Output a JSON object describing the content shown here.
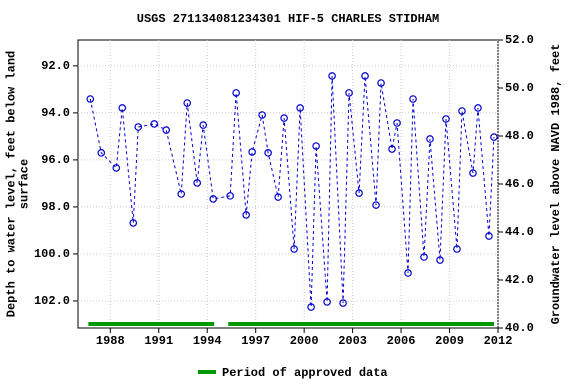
{
  "chart_data": {
    "type": "line",
    "title": "USGS 271134081234301 HIF-5  CHARLES STIDHAM",
    "y_label": "Depth to water level, feet below land\nsurface",
    "y2_label": "Groundwater level above NAVD 1988, feet",
    "xlim": [
      1986,
      2012
    ],
    "xticks": [
      1988,
      1991,
      1994,
      1997,
      2000,
      2003,
      2006,
      2009,
      2012
    ],
    "ylim": [
      90.9,
      103.15
    ],
    "yticks": [
      {
        "value": 92,
        "label": "92.0"
      },
      {
        "value": 94,
        "label": "94.0"
      },
      {
        "value": 96,
        "label": "96.0"
      },
      {
        "value": 98,
        "label": "98.0"
      },
      {
        "value": 100,
        "label": "100.0"
      },
      {
        "value": 102,
        "label": "102.0"
      }
    ],
    "y_inverted": true,
    "y2lim": [
      52,
      40
    ],
    "y2ticks": [
      {
        "value": 52,
        "label": "52.0"
      },
      {
        "value": 50,
        "label": "50.0"
      },
      {
        "value": 48,
        "label": "48.0"
      },
      {
        "value": 46,
        "label": "46.0"
      },
      {
        "value": 44,
        "label": "44.0"
      },
      {
        "value": 42,
        "label": "42.0"
      },
      {
        "value": 40,
        "label": "40.0"
      }
    ],
    "grid": true,
    "series": [
      {
        "color": "#0000cc",
        "x": [
          1986.76,
          1987.44,
          1988.37,
          1988.74,
          1989.42,
          1989.73,
          1990.72,
          1991.46,
          1992.39,
          1992.76,
          1993.38,
          1993.75,
          1994.37,
          1995.42,
          1995.79,
          1996.41,
          1996.78,
          1997.4,
          1997.77,
          1998.39,
          1998.76,
          1999.38,
          1999.75,
          2000.43,
          2000.74,
          2001.42,
          2001.73,
          2002.41,
          2002.78,
          2003.4,
          2003.77,
          2004.45,
          2004.76,
          2005.44,
          2005.75,
          2006.43,
          2006.74,
          2007.42,
          2007.79,
          2008.41,
          2008.78,
          2009.46,
          2009.77,
          2010.45,
          2010.76,
          2011.44,
          2011.75
        ],
        "values": [
          93.41,
          95.7,
          96.34,
          93.79,
          98.68,
          94.6,
          94.47,
          94.73,
          97.45,
          93.58,
          96.98,
          94.52,
          97.66,
          97.53,
          93.15,
          98.34,
          95.66,
          94.09,
          95.7,
          97.58,
          94.22,
          99.79,
          93.79,
          102.26,
          95.41,
          102.04,
          92.43,
          102.09,
          93.15,
          97.41,
          92.43,
          97.92,
          92.73,
          95.54,
          94.43,
          100.81,
          93.41,
          100.13,
          95.11,
          100.26,
          94.26,
          99.79,
          93.92,
          96.56,
          93.79,
          99.24,
          95.03
        ]
      }
    ],
    "approved": {
      "name": "Period of approved data",
      "color": "#009900",
      "periods": [
        [
          1986.64,
          1994.43
        ],
        [
          1995.3,
          2011.75
        ]
      ]
    }
  }
}
